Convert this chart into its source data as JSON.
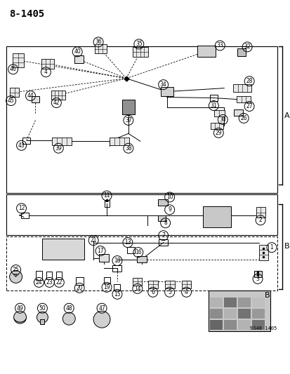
{
  "title": "8-1405",
  "subtitle": "9348 1405",
  "bg_color": "#ffffff",
  "line_color": "#000000",
  "label_A": "A",
  "label_B": "B",
  "fig_width": 4.14,
  "fig_height": 5.33,
  "dpi": 100
}
